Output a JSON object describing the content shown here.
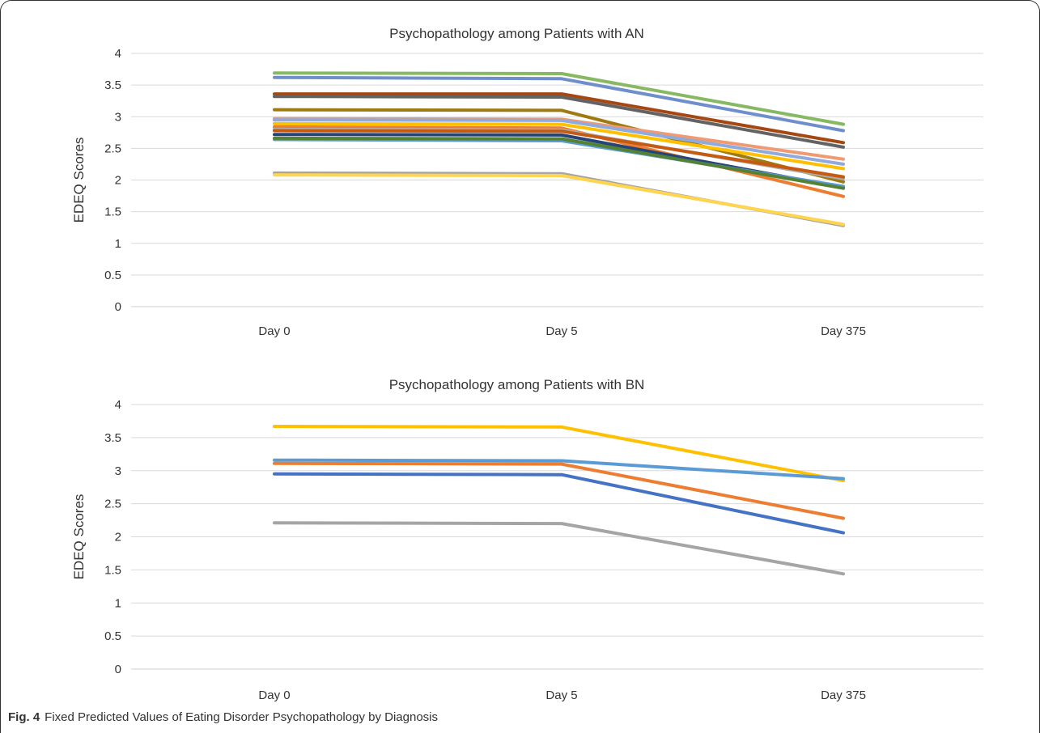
{
  "figure": {
    "label": "Fig. 4",
    "caption": "Fixed Predicted Values of Eating Disorder Psychopathology by Diagnosis"
  },
  "chart_data": [
    {
      "type": "line",
      "title": "Psychopathology among Patients with AN",
      "xlabel": "",
      "ylabel": "EDEQ Scores",
      "categories": [
        "Day 0",
        "Day  5",
        "Day 375"
      ],
      "ylim": [
        0,
        4
      ],
      "yticks": [
        "0",
        "0.5",
        "1",
        "1.5",
        "2",
        "2.5",
        "3",
        "3.5",
        "4"
      ],
      "grid": true,
      "legend": "none",
      "series": [
        {
          "color": "#86B961",
          "values": [
            3.69,
            3.68,
            2.88
          ]
        },
        {
          "color": "#6E8FCC",
          "values": [
            3.62,
            3.6,
            2.78
          ]
        },
        {
          "color": "#A64712",
          "values": [
            3.36,
            3.36,
            2.59
          ]
        },
        {
          "color": "#636363",
          "values": [
            3.32,
            3.31,
            2.52
          ]
        },
        {
          "color": "#9E7A12",
          "values": [
            3.11,
            3.1,
            1.97
          ]
        },
        {
          "color": "#F19A72",
          "values": [
            2.97,
            2.96,
            2.33
          ]
        },
        {
          "color": "#8FAADC",
          "values": [
            2.95,
            2.94,
            2.25
          ]
        },
        {
          "color": "#FFC000",
          "values": [
            2.89,
            2.88,
            2.18
          ]
        },
        {
          "color": "#ED7D31",
          "values": [
            2.84,
            2.82,
            1.74
          ]
        },
        {
          "color": "#AFABAB",
          "values": [
            2.8,
            2.79,
            2.02
          ]
        },
        {
          "color": "#C55A11",
          "values": [
            2.78,
            2.77,
            2.05
          ]
        },
        {
          "color": "#264478",
          "values": [
            2.72,
            2.71,
            1.88
          ]
        },
        {
          "color": "#5B9BD5",
          "values": [
            2.64,
            2.62,
            1.9
          ]
        },
        {
          "color": "#548235",
          "values": [
            2.66,
            2.65,
            1.87
          ]
        },
        {
          "color": "#A5A5A5",
          "values": [
            2.11,
            2.1,
            1.28
          ]
        },
        {
          "color": "#FFD54F",
          "values": [
            2.08,
            2.07,
            1.3
          ]
        }
      ]
    },
    {
      "type": "line",
      "title": "Psychopathology among Patients with BN",
      "xlabel": "",
      "ylabel": "EDEQ Scores",
      "categories": [
        "Day 0",
        "Day 5",
        "Day 375"
      ],
      "ylim": [
        0,
        4
      ],
      "yticks": [
        "0",
        "0.5",
        "1",
        "1.5",
        "2",
        "2.5",
        "3",
        "3.5",
        "4"
      ],
      "grid": true,
      "legend": "none",
      "series": [
        {
          "color": "#FFC000",
          "values": [
            3.67,
            3.66,
            2.85
          ]
        },
        {
          "color": "#5B9BD5",
          "values": [
            3.16,
            3.15,
            2.88
          ]
        },
        {
          "color": "#ED7D31",
          "values": [
            3.11,
            3.1,
            2.28
          ]
        },
        {
          "color": "#4472C4",
          "values": [
            2.95,
            2.94,
            2.06
          ]
        },
        {
          "color": "#A5A5A5",
          "values": [
            2.21,
            2.2,
            1.44
          ]
        }
      ]
    }
  ]
}
